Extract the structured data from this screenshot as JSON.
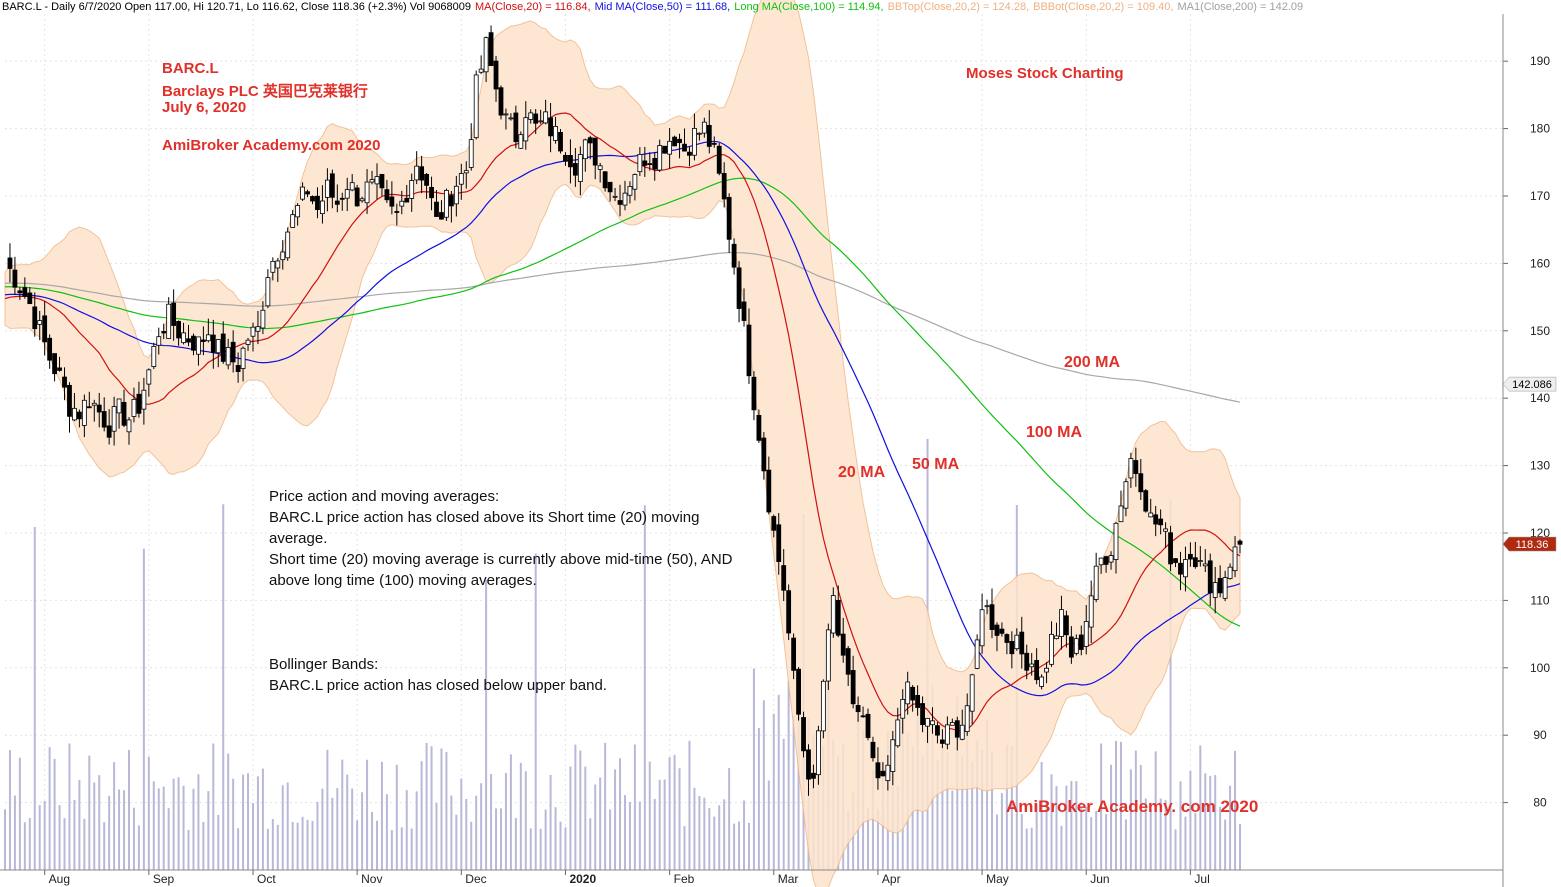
{
  "header": {
    "ticker_info": "BARC.L - Daily 6/7/2020 Open 117.00, Hi 120.71, Lo 116.62, Close 118.36 (+2.3%) Vol 9068009",
    "ma20": "MA(Close,20) = 116.84,",
    "ma50": "Mid MA(Close,50) = 111.68,",
    "ma100": "Long MA(Close,100) = 114.94,",
    "bbtop": "BBTop(Close,20,2) = 124.28,",
    "bbbot": "BBBot(Close,20,2) = 109.40,",
    "ma200": "MA1(Close,200) = 142.09"
  },
  "titles": {
    "symbol": "BARC.L",
    "company": "Barclays PLC 英国巴克莱银行",
    "date": "July 6, 2020",
    "brand_top": "AmiBroker Academy.com  2020",
    "moses": "Moses Stock Charting",
    "brand_bottom": "AmiBroker Academy. com  2020"
  },
  "notes": {
    "ma_heading": "Price action and moving averages:",
    "ma_line1": "BARC.L price action has closed above its Short time (20) moving",
    "ma_line2": "average.",
    "ma_line3": "Short time (20) moving average is currently above mid-time (50), AND",
    "ma_line4": "above long time (100) moving averages.",
    "bb_heading": "Bollinger Bands:",
    "bb_line1": "BARC.L price action has closed below upper band."
  },
  "annotations": {
    "ma20_label": "20 MA",
    "ma50_label": "50 MA",
    "ma100_label": "100 MA",
    "ma200_label": "200 MA"
  },
  "colors": {
    "accent_red": "#e0302a",
    "ma20": "#d01010",
    "ma50": "#1010e0",
    "ma100": "#10c010",
    "ma200": "#a8a8a8",
    "bollinger_fill": "#fde3cc",
    "bollinger_edge": "#f0b888",
    "volume": "#b8b8d8",
    "grid": "#e4e4e4",
    "price_tag": "#b02a10"
  },
  "chart_data": {
    "type": "candlestick",
    "ylim": [
      70,
      197
    ],
    "y_ticks": [
      80,
      90,
      100,
      110,
      120,
      130,
      140,
      150,
      160,
      170,
      180,
      190
    ],
    "x_ticks": [
      "Aug",
      "Sep",
      "Oct",
      "Nov",
      "Dec",
      "2020",
      "Feb",
      "Mar",
      "Apr",
      "May",
      "Jun",
      "Jul"
    ],
    "last_close_tag": "118.36",
    "ma200_tag": "142.086",
    "days_per_tick": 21,
    "ohlc_close_path": [
      [
        0,
        160
      ],
      [
        2,
        158
      ],
      [
        5,
        154
      ],
      [
        7,
        150
      ],
      [
        9,
        146
      ],
      [
        11,
        143
      ],
      [
        13,
        139
      ],
      [
        15,
        138
      ],
      [
        17,
        140
      ],
      [
        19,
        138
      ],
      [
        21,
        136
      ],
      [
        23,
        138
      ],
      [
        25,
        137
      ],
      [
        27,
        139
      ],
      [
        29,
        144
      ],
      [
        31,
        150
      ],
      [
        33,
        152
      ],
      [
        35,
        150
      ],
      [
        37,
        149
      ],
      [
        39,
        148
      ],
      [
        41,
        150
      ],
      [
        43,
        147
      ],
      [
        45,
        146
      ],
      [
        47,
        145
      ],
      [
        49,
        149
      ],
      [
        51,
        150
      ],
      [
        53,
        159
      ],
      [
        55,
        162
      ],
      [
        57,
        165
      ],
      [
        59,
        168
      ],
      [
        61,
        171
      ],
      [
        63,
        168
      ],
      [
        65,
        171
      ],
      [
        67,
        169
      ],
      [
        69,
        172
      ],
      [
        71,
        170
      ],
      [
        73,
        171
      ],
      [
        75,
        171
      ],
      [
        77,
        168
      ],
      [
        79,
        167
      ],
      [
        81,
        171
      ],
      [
        83,
        175
      ],
      [
        85,
        172
      ],
      [
        87,
        166
      ],
      [
        89,
        169
      ],
      [
        91,
        172
      ],
      [
        93,
        174
      ],
      [
        95,
        186
      ],
      [
        97,
        192
      ],
      [
        99,
        186
      ],
      [
        101,
        181
      ],
      [
        103,
        179
      ],
      [
        105,
        183
      ],
      [
        107,
        180
      ],
      [
        109,
        181
      ],
      [
        111,
        179
      ],
      [
        113,
        177
      ],
      [
        115,
        175
      ],
      [
        117,
        177
      ],
      [
        119,
        176
      ],
      [
        121,
        173
      ],
      [
        123,
        170
      ],
      [
        125,
        171
      ],
      [
        127,
        174
      ],
      [
        129,
        176
      ],
      [
        131,
        176
      ],
      [
        133,
        178
      ],
      [
        135,
        179
      ],
      [
        137,
        177
      ],
      [
        139,
        179
      ],
      [
        141,
        180
      ],
      [
        143,
        176
      ],
      [
        145,
        169
      ],
      [
        147,
        160
      ],
      [
        149,
        150
      ],
      [
        151,
        140
      ],
      [
        153,
        130
      ],
      [
        155,
        120
      ],
      [
        157,
        112
      ],
      [
        159,
        98
      ],
      [
        161,
        88
      ],
      [
        163,
        82
      ],
      [
        165,
        98
      ],
      [
        167,
        110
      ],
      [
        169,
        100
      ],
      [
        171,
        95
      ],
      [
        173,
        92
      ],
      [
        175,
        85
      ],
      [
        177,
        82
      ],
      [
        179,
        88
      ],
      [
        181,
        97
      ],
      [
        183,
        95
      ],
      [
        185,
        92
      ],
      [
        187,
        91
      ],
      [
        189,
        89
      ],
      [
        191,
        91
      ],
      [
        193,
        92
      ],
      [
        195,
        97
      ],
      [
        197,
        110
      ],
      [
        199,
        107
      ],
      [
        201,
        105
      ],
      [
        203,
        104
      ],
      [
        205,
        102
      ],
      [
        207,
        101
      ],
      [
        209,
        98
      ],
      [
        211,
        104
      ],
      [
        213,
        107
      ],
      [
        215,
        102
      ],
      [
        217,
        104
      ],
      [
        219,
        111
      ],
      [
        221,
        116
      ],
      [
        223,
        118
      ],
      [
        225,
        125
      ],
      [
        227,
        131
      ],
      [
        229,
        128
      ],
      [
        231,
        122
      ],
      [
        233,
        121
      ],
      [
        235,
        117
      ],
      [
        237,
        115
      ],
      [
        239,
        118
      ],
      [
        241,
        115
      ],
      [
        243,
        113
      ],
      [
        245,
        112
      ],
      [
        247,
        116
      ],
      [
        249,
        118
      ]
    ],
    "series": [
      {
        "name": "MA(Close,20)",
        "value": 116.84
      },
      {
        "name": "Mid MA(Close,50)",
        "value": 111.68
      },
      {
        "name": "Long MA(Close,100)",
        "value": 114.94
      },
      {
        "name": "BBTop(Close,20,2)",
        "value": 124.28
      },
      {
        "name": "BBBot(Close,20,2)",
        "value": 109.4
      },
      {
        "name": "MA1(Close,200)",
        "value": 142.09
      }
    ],
    "close": 118.36,
    "open": 117.0,
    "high": 120.71,
    "low": 116.62,
    "volume": 9068009
  }
}
